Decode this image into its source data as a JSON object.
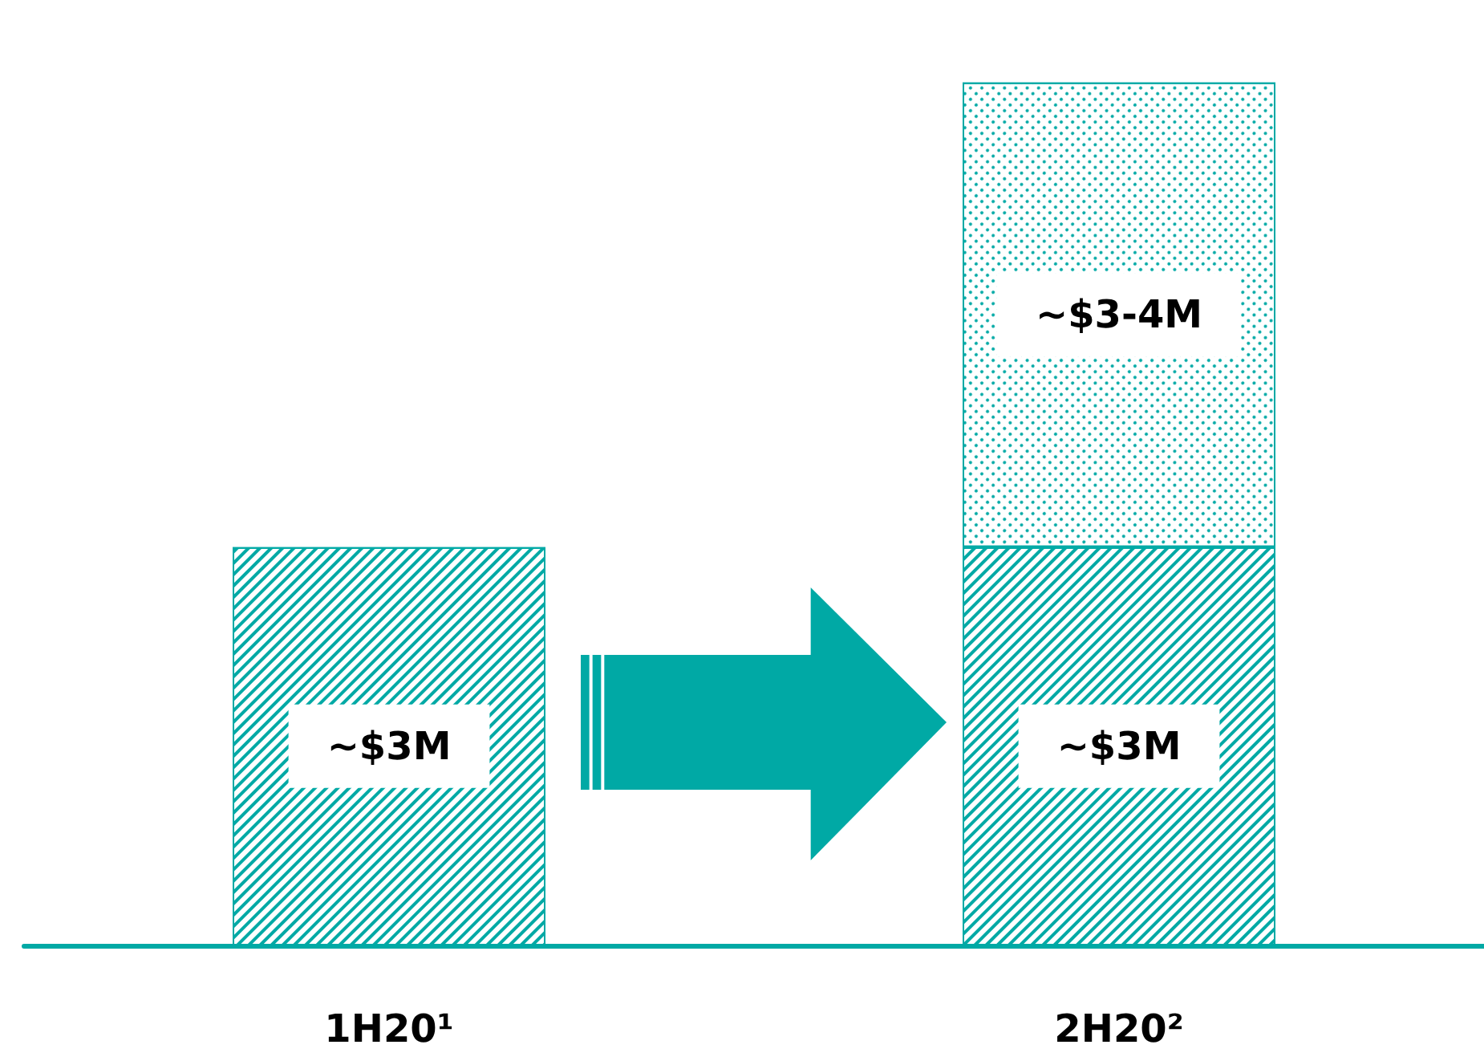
{
  "chart_data": {
    "type": "bar",
    "stacked": true,
    "categories": [
      "1H20¹",
      "2H20²"
    ],
    "series": [
      {
        "color": "#00a9a5",
        "values": [
          3,
          3
        ],
        "value_labels": [
          "~$3M",
          "~$3M"
        ]
      },
      {
        "color": "#00a9a5",
        "values": [
          null,
          3.5
        ],
        "value_labels": [
          null,
          "~$3-4M"
        ]
      }
    ]
  }
}
